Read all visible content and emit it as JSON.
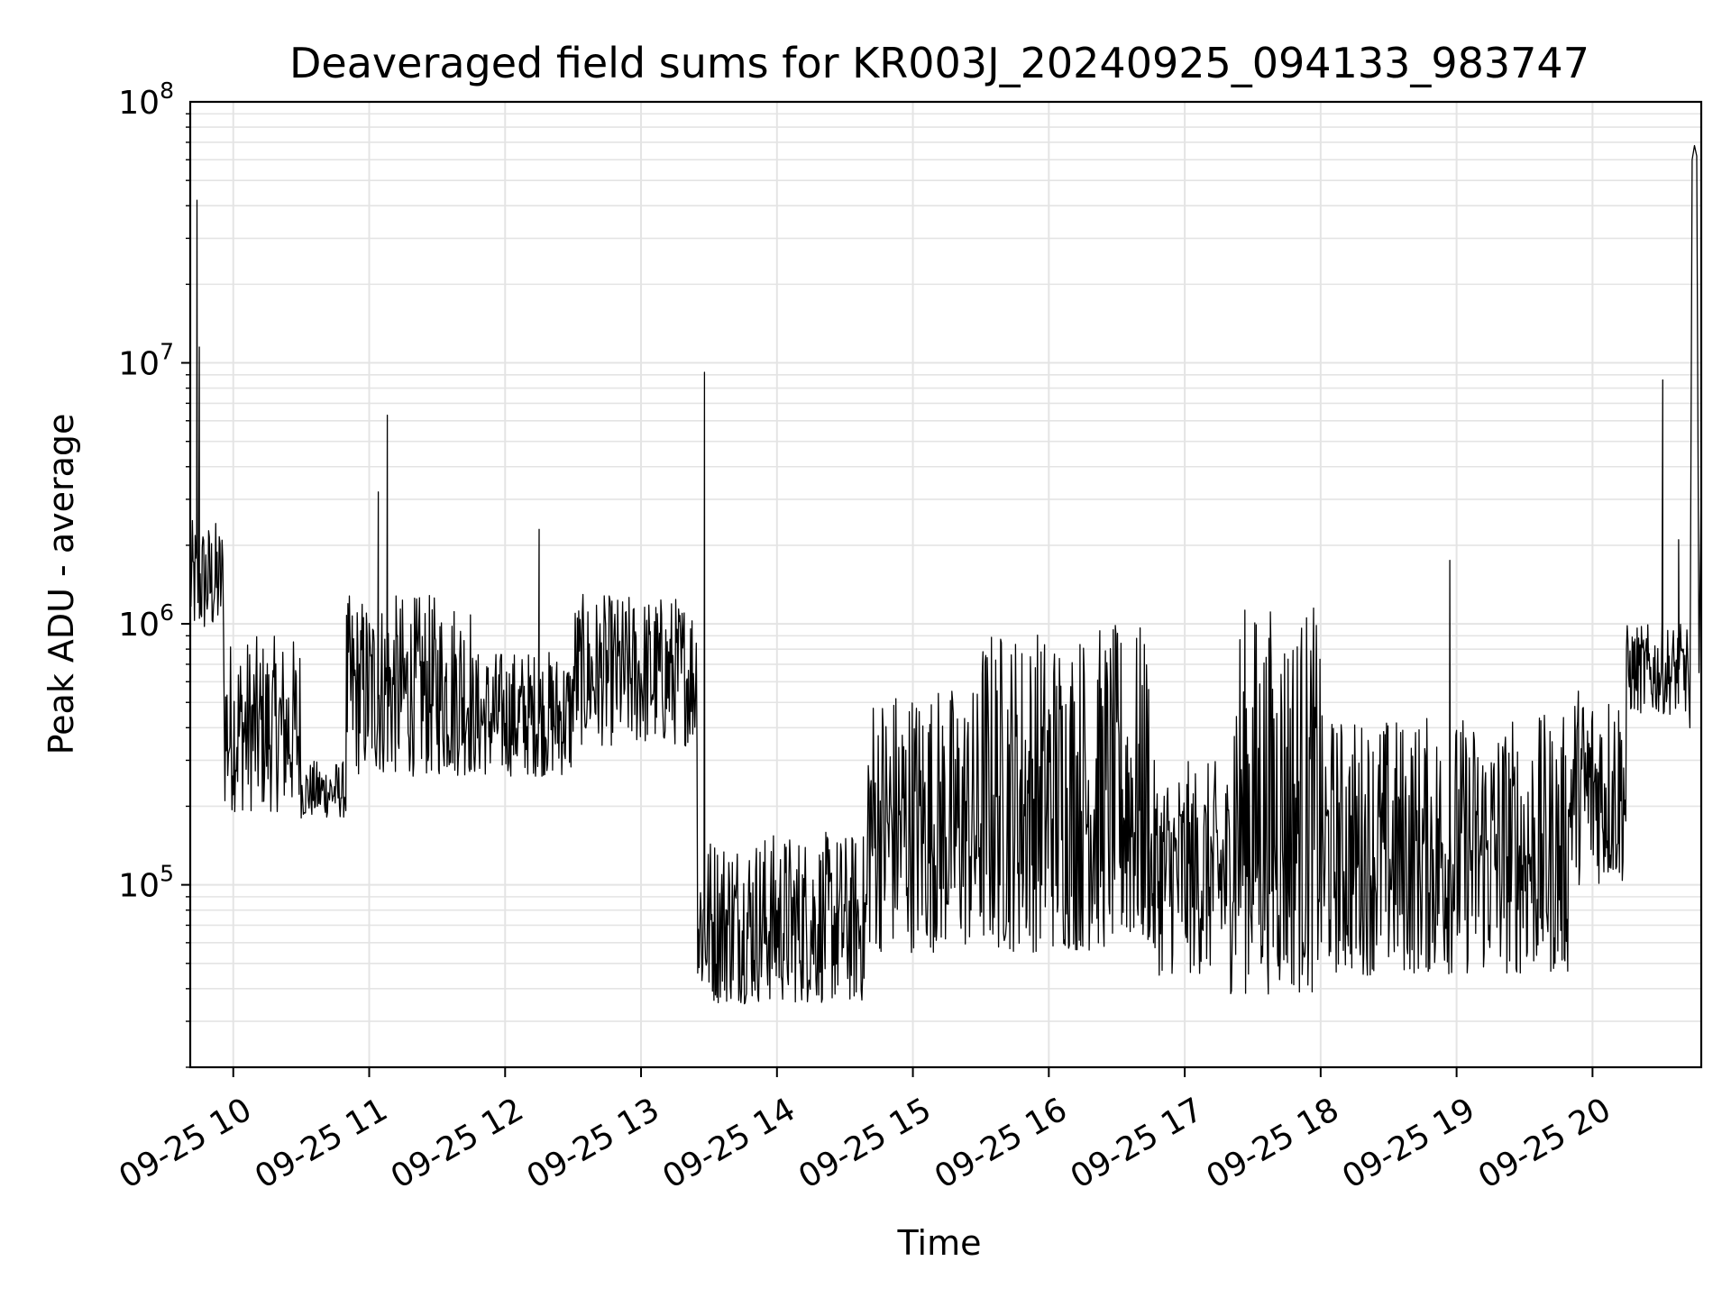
{
  "chart_data": {
    "type": "line",
    "title": "Deaveraged field sums for KR003J_20240925_094133_983747",
    "xlabel": "Time",
    "ylabel": "Peak ADU - average",
    "yscale": "log",
    "ylim": [
      20000,
      100000000
    ],
    "xlim": [
      "2024-09-25 09:41",
      "2024-09-25 20:48"
    ],
    "grid": true,
    "line_color": "#000000",
    "x_ticks": [
      "09-25 10",
      "09-25 11",
      "09-25 12",
      "09-25 13",
      "09-25 14",
      "09-25 15",
      "09-25 16",
      "09-25 17",
      "09-25 18",
      "09-25 19",
      "09-25 20"
    ],
    "y_ticks": [
      {
        "base": "10",
        "exp": "5",
        "value": 100000
      },
      {
        "base": "10",
        "exp": "6",
        "value": 1000000
      },
      {
        "base": "10",
        "exp": "7",
        "value": 10000000
      },
      {
        "base": "10",
        "exp": "8",
        "value": 100000000
      }
    ],
    "series": [
      {
        "segments": [
          {
            "start": "09:41",
            "end": "09:56",
            "floor": 900000,
            "ceil": 2500000
          },
          {
            "start": "09:56",
            "end": "10:30",
            "floor": 190000,
            "ceil": 900000
          },
          {
            "start": "10:30",
            "end": "10:50",
            "floor": 180000,
            "ceil": 300000
          },
          {
            "start": "10:50",
            "end": "11:45",
            "floor": 260000,
            "ceil": 1300000
          },
          {
            "start": "11:45",
            "end": "12:30",
            "floor": 260000,
            "ceil": 800000
          },
          {
            "start": "12:30",
            "end": "13:25",
            "floor": 340000,
            "ceil": 1300000
          },
          {
            "start": "13:25",
            "end": "14:40",
            "floor": 35000,
            "ceil": 160000
          },
          {
            "start": "14:40",
            "end": "15:30",
            "floor": 55000,
            "ceil": 600000
          },
          {
            "start": "15:30",
            "end": "16:45",
            "floor": 55000,
            "ceil": 1000000
          },
          {
            "start": "16:45",
            "end": "17:20",
            "floor": 45000,
            "ceil": 300000
          },
          {
            "start": "17:20",
            "end": "18:00",
            "floor": 38000,
            "ceil": 1200000
          },
          {
            "start": "18:00",
            "end": "19:50",
            "floor": 45000,
            "ceil": 450000
          },
          {
            "start": "19:50",
            "end": "20:15",
            "floor": 100000,
            "ceil": 600000
          },
          {
            "start": "20:15",
            "end": "20:42",
            "floor": 450000,
            "ceil": 1000000
          }
        ],
        "peaks": [
          {
            "t": "09:44",
            "v": 42000000
          },
          {
            "t": "09:45",
            "v": 11500000
          },
          {
            "t": "11:08",
            "v": 6300000
          },
          {
            "t": "11:04",
            "v": 3200000
          },
          {
            "t": "12:15",
            "v": 2300000
          },
          {
            "t": "13:28",
            "v": 9200000
          },
          {
            "t": "18:57",
            "v": 1750000
          },
          {
            "t": "20:31",
            "v": 8600000
          },
          {
            "t": "20:38",
            "v": 2100000
          }
        ],
        "tail": [
          {
            "t": "20:43",
            "v": 400000
          },
          {
            "t": "20:44",
            "v": 60000000
          },
          {
            "t": "20:45",
            "v": 68000000
          },
          {
            "t": "20:46",
            "v": 62000000
          },
          {
            "t": "20:47",
            "v": 650000
          },
          {
            "t": "20:48",
            "v": 3500000
          }
        ]
      }
    ]
  }
}
